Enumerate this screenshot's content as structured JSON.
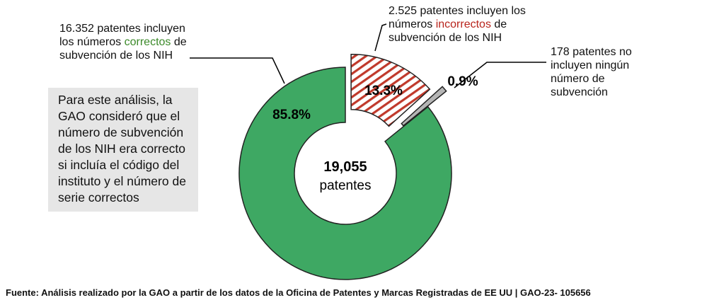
{
  "chart_data": {
    "type": "donut",
    "values": [
      85.8,
      13.3,
      0.9
    ],
    "value_labels": [
      "85.8%",
      "13.3%",
      "0.9%"
    ],
    "colors": [
      "#3ea863",
      "#c0392b",
      "#b5b5b5"
    ],
    "hatched": [
      false,
      true,
      false
    ],
    "center_labels": [
      "19,055",
      "patentes"
    ],
    "annotations": [
      {
        "before": "16.352 patentes incluyen los números",
        "highlight": "correctos",
        "after": "de subvención de los NIH"
      },
      {
        "before": "2.525 patentes incluyen los números",
        "highlight": "incorrectos",
        "after": "de subvención de los NIH"
      },
      {
        "before": "178 patentes no incluyen ningún número de subvención"
      }
    ],
    "note": "Para este análisis, la GAO consideró que el número de subvención de los NIH era correcto si incluía el código del instituto y el número de serie correctos",
    "source": "Fuente: Análisis realizado por la GAO a partir de los datos de la Oficina de Patentes y Marcas Registradas de EE UU  |  GAO-23- 105656"
  }
}
